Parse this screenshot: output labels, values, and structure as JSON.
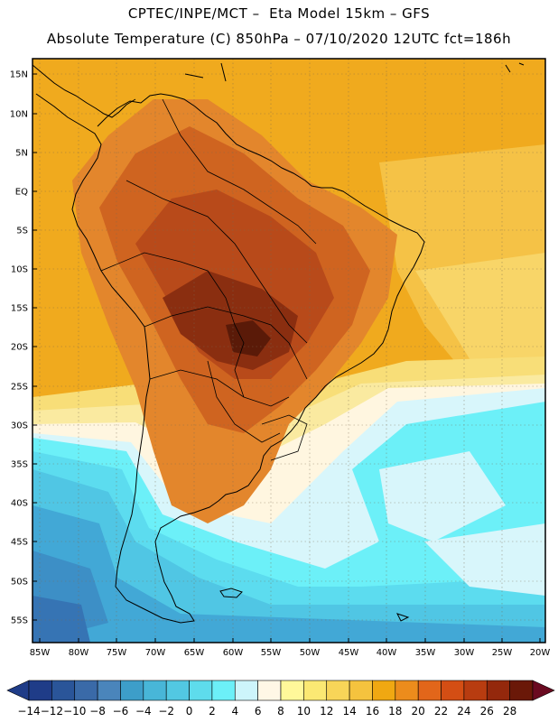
{
  "header": {
    "line1": "CPTEC/INPE/MCT –  Eta Model 15km – GFS",
    "line2": "Absolute Temperature (C) 850hPa – 07/10/2020 12UTC fct=186h"
  },
  "map": {
    "lat_labels": [
      "15N",
      "10N",
      "5N",
      "EQ",
      "5S",
      "10S",
      "15S",
      "20S",
      "25S",
      "30S",
      "35S",
      "40S",
      "45S",
      "50S",
      "55S"
    ],
    "lon_labels": [
      "85W",
      "80W",
      "75W",
      "70W",
      "65W",
      "60W",
      "55W",
      "50W",
      "45W",
      "40W",
      "35W",
      "30W",
      "25W",
      "20W"
    ],
    "lat_range": [
      16.5,
      -58
    ],
    "lon_range": [
      -86,
      -19.5
    ]
  },
  "colorbar": {
    "labels": [
      "-14",
      "-12",
      "-10",
      "-8",
      "-6",
      "-4",
      "-2",
      "0",
      "2",
      "4",
      "6",
      "8",
      "10",
      "12",
      "14",
      "16",
      "18",
      "20",
      "22",
      "24",
      "26",
      "28"
    ],
    "colors": [
      "#1f3c88",
      "#2a5599",
      "#3a6aa8",
      "#4a85bb",
      "#3d9ec9",
      "#48b6d8",
      "#52c8e2",
      "#5edcec",
      "#6cf0f8",
      "#cdf5fb",
      "#fff7e6",
      "#fff89a",
      "#fbe873",
      "#f8d558",
      "#f5c33e",
      "#f0a812",
      "#ec8c1c",
      "#e2661a",
      "#d44e14",
      "#b83c10",
      "#94280c",
      "#6a1808"
    ]
  },
  "temperature_field": {
    "legend_colors": {
      "t28": "#5a1a08",
      "t26": "#8a2e10",
      "t24": "#b84a1a",
      "t22": "#cf6420",
      "t20": "#e3862c",
      "t18": "#eda32e",
      "t16": "#f2b540",
      "t14": "#f5c85c",
      "t12": "#f8de78",
      "t10": "#faeaa0",
      "t8": "#fff6e0",
      "t6": "#d8f6fb",
      "t4": "#6cf0f8",
      "t2": "#5cdcef",
      "t0": "#50c6e4",
      "tm2": "#42a8d6",
      "tm4": "#3d8fc6",
      "tm6": "#3674b4"
    }
  }
}
